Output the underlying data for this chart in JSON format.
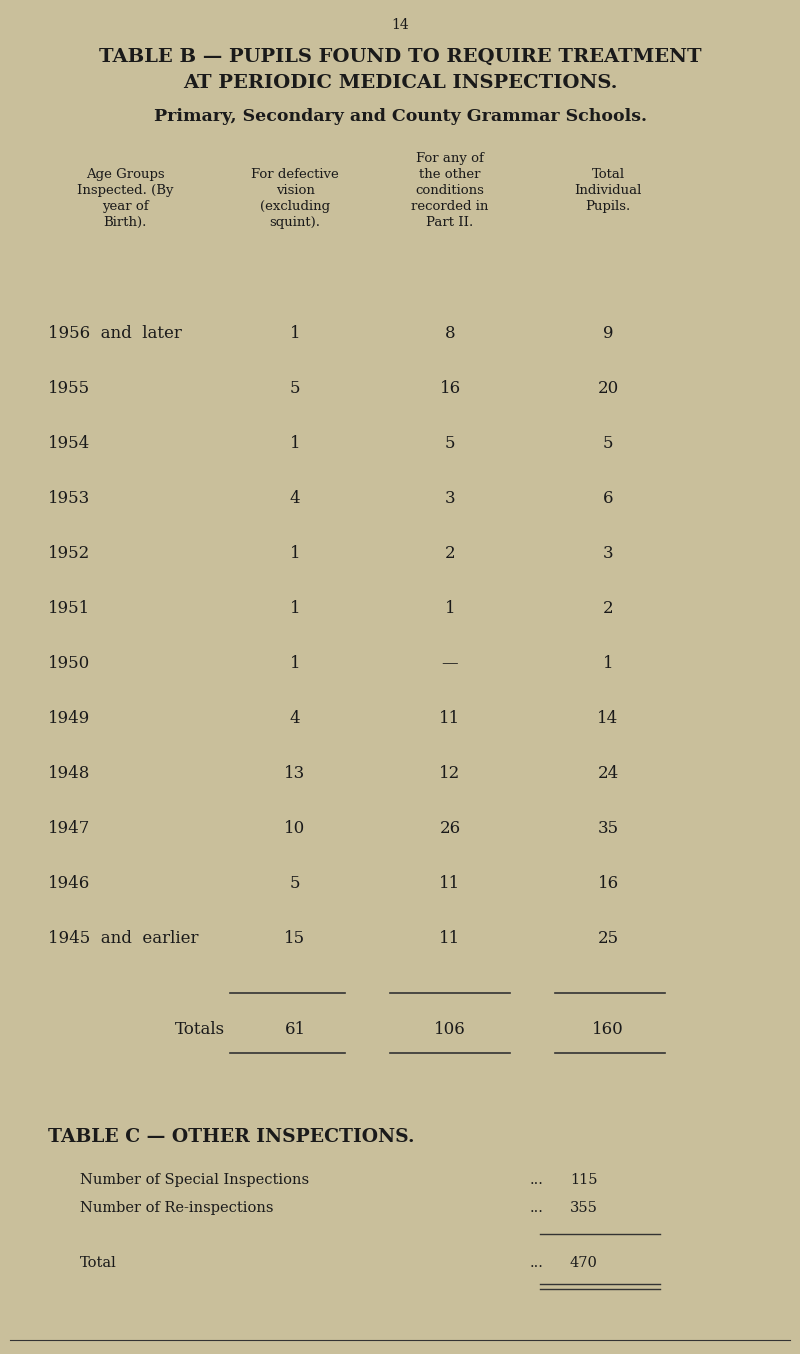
{
  "page_number": "14",
  "title_line1": "TABLE B — PUPILS FOUND TO REQUIRE TREATMENT",
  "title_line2": "AT PERIODIC MEDICAL INSPECTIONS.",
  "subtitle": "Primary, Secondary and County Grammar Schools.",
  "bg_color": "#c9bf9b",
  "text_color": "#1a1a1a",
  "col_x": {
    "label": 0.06,
    "col1": 0.385,
    "col2": 0.565,
    "col3": 0.76
  },
  "header_lines": {
    "col0": [
      "Age Groups",
      "Inspected. (By",
      "year of",
      "Birth)."
    ],
    "col1": [
      "For defective",
      "vision",
      "(excluding",
      "squint)."
    ],
    "col2_top": "For any of",
    "col2": [
      "the other",
      "conditions",
      "recorded in",
      "Part II."
    ],
    "col3": [
      "Total",
      "Individual",
      "Pupils."
    ]
  },
  "rows": [
    {
      "label": "1956  and  later",
      "col1": "1",
      "col2": "8",
      "col3": "9"
    },
    {
      "label": "1955",
      "col1": "5",
      "col2": "16",
      "col3": "20"
    },
    {
      "label": "1954",
      "col1": "1",
      "col2": "5",
      "col3": "5"
    },
    {
      "label": "1953",
      "col1": "4",
      "col2": "3",
      "col3": "6"
    },
    {
      "label": "1952",
      "col1": "1",
      "col2": "2",
      "col3": "3"
    },
    {
      "label": "1951",
      "col1": "1",
      "col2": "1",
      "col3": "2"
    },
    {
      "label": "1950",
      "col1": "1",
      "col2": "—",
      "col3": "1"
    },
    {
      "label": "1949",
      "col1": "4",
      "col2": "11",
      "col3": "14"
    },
    {
      "label": "1948",
      "col1": "13",
      "col2": "12",
      "col3": "24"
    },
    {
      "label": "1947",
      "col1": "10",
      "col2": "26",
      "col3": "35"
    },
    {
      "label": "1946",
      "col1": "5",
      "col2": "11",
      "col3": "16"
    },
    {
      "label": "1945  and  earlier",
      "col1": "15",
      "col2": "11",
      "col3": "25"
    }
  ],
  "totals": {
    "label": "Totals",
    "col1": "61",
    "col2": "106",
    "col3": "160"
  },
  "table_c_title": "TABLE C — OTHER INSPECTIONS.",
  "table_c_rows": [
    {
      "label": "Number of Special Inspections",
      "dots": "...",
      "value": "115"
    },
    {
      "label": "Number of Re-inspections",
      "dots": "...",
      "value": "355"
    }
  ],
  "table_c_total": {
    "label": "Total",
    "dots": "...",
    "value": "470"
  }
}
